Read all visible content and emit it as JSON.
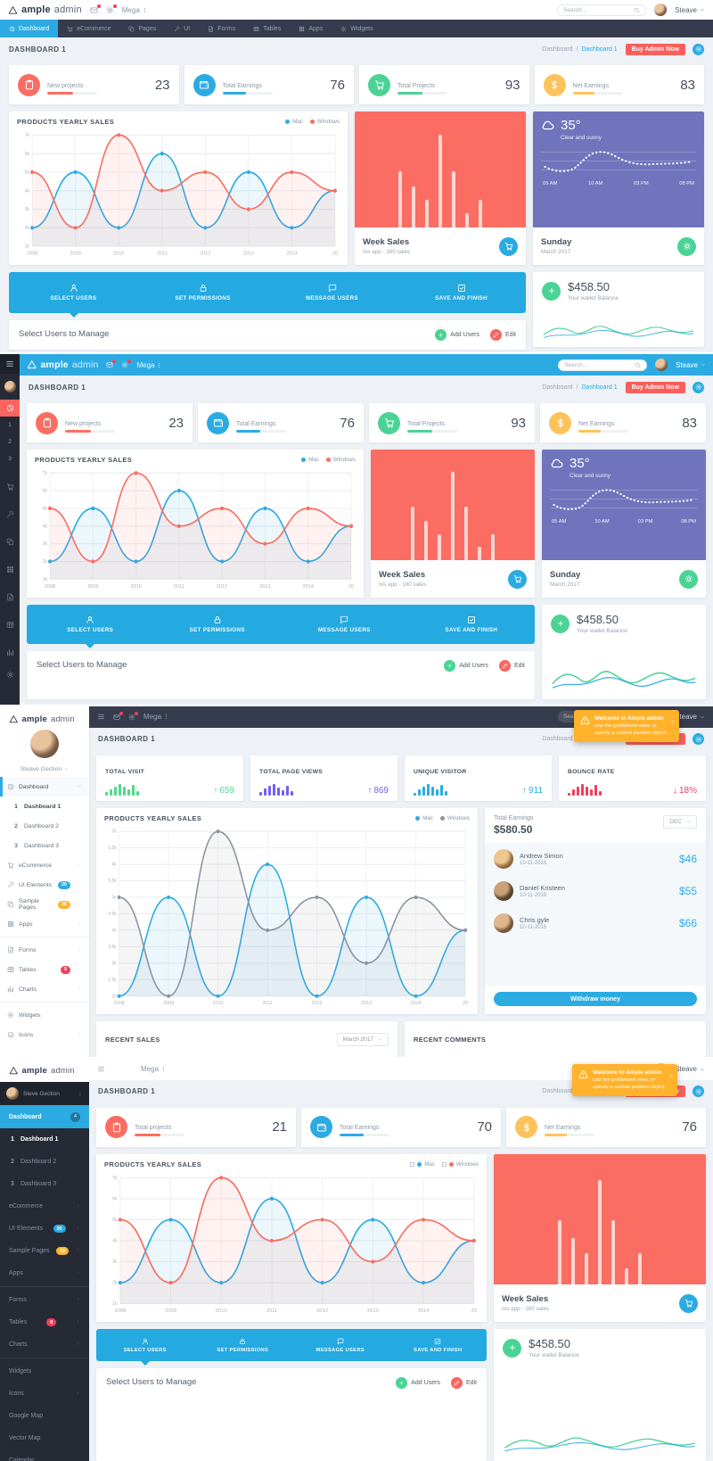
{
  "brand": {
    "bold": "ample",
    "light": "admin",
    "menu": "Mega"
  },
  "user": {
    "short": "Steave",
    "s3": "Steave Gection",
    "s4": "Steve Gection"
  },
  "search_placeholder": "Search...",
  "page": {
    "title": "DASHBOARD 1",
    "crumb_root": "Dashboard",
    "crumb_sep": "/",
    "crumb_current": "Dashboard 1",
    "buy": "Buy Admin Now"
  },
  "nav": [
    {
      "label": "Dashboard",
      "icon": "clock",
      "active": true
    },
    {
      "label": "eCommerce",
      "icon": "cart"
    },
    {
      "label": "Pages",
      "icon": "copy"
    },
    {
      "label": "UI",
      "icon": "wand"
    },
    {
      "label": "Forms",
      "icon": "file"
    },
    {
      "label": "Tables",
      "icon": "table"
    },
    {
      "label": "Apps",
      "icon": "grid"
    },
    {
      "label": "Widgets",
      "icon": "gear"
    }
  ],
  "metrics_a": [
    {
      "label": "New projects",
      "value": "23",
      "color": "#fb6d62",
      "icon": "clip",
      "progress": 52
    },
    {
      "label": "Total Earnings",
      "value": "76",
      "color": "#2cabe3",
      "icon": "wallet",
      "progress": 48
    },
    {
      "label": "Total Projects",
      "value": "93",
      "color": "#4bd395",
      "icon": "cart",
      "progress": 50
    },
    {
      "label": "Net Earnings",
      "value": "83",
      "color": "#fdc35b",
      "icon": "dollar",
      "progress": 44
    }
  ],
  "metrics_b": [
    {
      "label": "Total projects",
      "value": "21",
      "color": "#fb6d62",
      "icon": "clip",
      "progress": 52
    },
    {
      "label": "Total Earnings",
      "value": "70",
      "color": "#2cabe3",
      "icon": "wallet",
      "progress": 48
    },
    {
      "label": "Net Earnings",
      "value": "76",
      "color": "#fdc35b",
      "icon": "dollar",
      "progress": 44
    }
  ],
  "chart_data": {
    "type": "line",
    "title": "PRODUCTS YEARLY SALES",
    "x": [
      "2008",
      "2009",
      "2010",
      "2011",
      "2012",
      "2013",
      "2014",
      "20"
    ],
    "series": [
      {
        "name": "Mac",
        "color": "#2cabe3",
        "values": [
          2,
          5,
          2,
          6,
          2,
          5,
          2,
          4
        ]
      },
      {
        "name": "Windows",
        "color": "#fb6d62",
        "values": [
          5,
          2,
          7,
          4,
          5,
          3,
          5,
          4
        ]
      }
    ],
    "units": "thousands",
    "ylim": [
      1,
      7
    ],
    "yticks": [
      "7k",
      "6k",
      "5k",
      "4k",
      "3k",
      "2k",
      "1k"
    ],
    "ylim_panel3": [
      2,
      7
    ],
    "yticks_panel3": [
      "7k",
      "6.5k",
      "6k",
      "5.5k",
      "5k",
      "4.5k",
      "4k",
      "3.5k",
      "3k",
      "2.5k",
      "2k"
    ],
    "windows_color_panel3": "#8d939e",
    "grid": true,
    "legend_position": "top-right"
  },
  "week_sales": {
    "title": "Week Sales",
    "subtitle": "Ios app - 160 sales",
    "bars": [
      52,
      38,
      25,
      85,
      52,
      13,
      25
    ]
  },
  "weather": {
    "temp": "35°",
    "desc": "Clear and sunny",
    "times": [
      "05 AM",
      "10 AM",
      "03 PM",
      "08 PM"
    ],
    "day": "Sunday",
    "month": "March 2017"
  },
  "steps": [
    {
      "label": "SELECT USERS",
      "icon": "person"
    },
    {
      "label": "SET PERMISSIONS",
      "icon": "lock"
    },
    {
      "label": "MESSAGE USERS",
      "icon": "message"
    },
    {
      "label": "SAVE AND FINISH",
      "icon": "check"
    }
  ],
  "wallet": {
    "amount": "$458.50",
    "label": "Your wallet Balance"
  },
  "manage": {
    "title": "Select Users to Manage",
    "add": "Add Users",
    "edit": "Edit"
  },
  "stats": [
    {
      "title": "TOTAL VISIT",
      "value": "659",
      "dir": "up",
      "color": "#53d88c",
      "bars": [
        4,
        7,
        10,
        13,
        10,
        7,
        12,
        5
      ]
    },
    {
      "title": "TOTAL PAGE VIEWS",
      "value": "869",
      "dir": "up",
      "color": "#7460ee",
      "bars": [
        4,
        8,
        11,
        13,
        9,
        6,
        11,
        5
      ]
    },
    {
      "title": "UNIQUE VISITOR",
      "value": "911",
      "dir": "up",
      "color": "#2cabe3",
      "bars": [
        3,
        7,
        10,
        13,
        10,
        7,
        12,
        5
      ]
    },
    {
      "title": "BOUNCE RATE",
      "value": "18%",
      "dir": "down",
      "color": "#f33e5b",
      "bars": [
        3,
        7,
        10,
        13,
        10,
        7,
        12,
        5
      ]
    }
  ],
  "earnings": {
    "title": "Total Earnings",
    "amount": "$580.50",
    "period": "DEC",
    "people": [
      {
        "name": "Andrew Simon",
        "date": "10-11-2016",
        "amount": "$46"
      },
      {
        "name": "Daniel Kristeen",
        "date": "10-11-2016",
        "amount": "$55"
      },
      {
        "name": "Chris gyle",
        "date": "10-11-2016",
        "amount": "$66"
      }
    ],
    "button": "Withdraw money"
  },
  "recent": {
    "sales_title": "RECENT SALES",
    "sales_period": "March 2017",
    "comments_title": "RECENT COMMENTS"
  },
  "toast": {
    "title": "Welcome to Ample admin",
    "body": "Use the predefined ones, or specify a custom position object."
  },
  "sidebar": {
    "dashboard": {
      "label": "Dashboard",
      "icon": "clock",
      "badge_s4": "4"
    },
    "items": [
      {
        "num": "1",
        "label": "Dashboard 1",
        "active": true
      },
      {
        "num": "2",
        "label": "Dashboard 2"
      },
      {
        "num": "3",
        "label": "Dashboard 3"
      },
      {
        "label": "eCommerce",
        "icon": "cart",
        "chev": true
      },
      {
        "label": "UI Elements",
        "icon": "wand",
        "badge": "20",
        "badge_color": "#2cabe3",
        "chev": true
      },
      {
        "label": "Sample Pages",
        "icon": "copy",
        "badge": "30",
        "badge_color": "#ffb22b",
        "chev": true
      },
      {
        "label": "Apps",
        "icon": "grid",
        "chev": true,
        "divider": true
      },
      {
        "label": "Forms",
        "icon": "file",
        "chev": true
      },
      {
        "label": "Tables",
        "icon": "table",
        "badge": "9",
        "badge_color": "#f33e5b",
        "chev": true
      },
      {
        "label": "Charts",
        "icon": "chart",
        "chev": true,
        "divider": true
      },
      {
        "label": "Widgets",
        "icon": "gear"
      },
      {
        "label": "Icons",
        "icon": "smile",
        "chev": true
      }
    ],
    "items_extra": [
      {
        "label": "Google Map",
        "icon": "pin"
      },
      {
        "label": "Vector Map",
        "icon": "map"
      },
      {
        "label": "Calendar",
        "icon": "calendar"
      }
    ]
  },
  "mini_sidebar": {
    "numbers": [
      "1",
      "2",
      "3"
    ],
    "icons": [
      "cart",
      "wand",
      "copy",
      "grid",
      "file",
      "table",
      "chart"
    ]
  }
}
